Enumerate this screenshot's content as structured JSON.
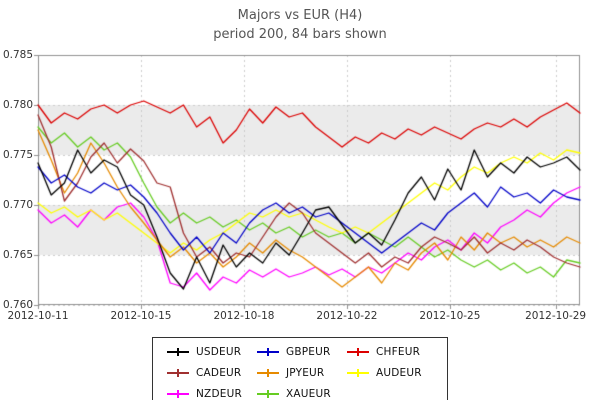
{
  "header": {
    "title": "Majors vs EUR (H4)",
    "subtitle": "period 200, 84 bars shown"
  },
  "chart_data": {
    "type": "line",
    "title": "Majors vs EUR (H4)",
    "subtitle": "period 200, 84 bars shown",
    "ylim": [
      0.76,
      0.785
    ],
    "yticks": [
      0.76,
      0.765,
      0.77,
      0.775,
      0.78,
      0.785
    ],
    "ytick_decimals": 3,
    "xticks": [
      {
        "label": "2012-10-11",
        "pos": 0.0
      },
      {
        "label": "2012-10-15",
        "pos": 0.19
      },
      {
        "label": "2012-10-18",
        "pos": 0.38
      },
      {
        "label": "2012-10-22",
        "pos": 0.57
      },
      {
        "label": "2012-10-25",
        "pos": 0.76
      },
      {
        "label": "2012-10-29",
        "pos": 0.955
      }
    ],
    "grid": true,
    "band_color": "#ebebeb",
    "grid_color": "#cccccc",
    "frame_color": "#909090",
    "legend_position": "bottom",
    "series": [
      {
        "name": "USDEUR",
        "color": "#000000",
        "values": [
          0.7742,
          0.771,
          0.7722,
          0.7755,
          0.7732,
          0.7745,
          0.7738,
          0.771,
          0.77,
          0.7668,
          0.7632,
          0.7616,
          0.7648,
          0.7622,
          0.766,
          0.7638,
          0.7652,
          0.7642,
          0.7662,
          0.765,
          0.7672,
          0.7695,
          0.7698,
          0.768,
          0.7662,
          0.7672,
          0.766,
          0.7685,
          0.7712,
          0.7728,
          0.7705,
          0.7736,
          0.7715,
          0.7755,
          0.7728,
          0.7742,
          0.7732,
          0.7748,
          0.7738,
          0.7742,
          0.7748,
          0.7735
        ]
      },
      {
        "name": "GBPEUR",
        "color": "#0000c8",
        "values": [
          0.7738,
          0.7722,
          0.773,
          0.7718,
          0.7712,
          0.7722,
          0.7715,
          0.772,
          0.7708,
          0.7692,
          0.7672,
          0.7655,
          0.7668,
          0.7652,
          0.7672,
          0.7662,
          0.7682,
          0.7695,
          0.7702,
          0.7692,
          0.7698,
          0.7688,
          0.7692,
          0.7682,
          0.7672,
          0.7662,
          0.7652,
          0.7662,
          0.7672,
          0.7682,
          0.7675,
          0.7692,
          0.7702,
          0.7712,
          0.7698,
          0.7718,
          0.7708,
          0.7712,
          0.7702,
          0.7715,
          0.7708,
          0.7705
        ]
      },
      {
        "name": "CHFEUR",
        "color": "#dc0000",
        "values": [
          0.78,
          0.7782,
          0.7792,
          0.7786,
          0.7796,
          0.78,
          0.7792,
          0.78,
          0.7804,
          0.7798,
          0.7792,
          0.78,
          0.7778,
          0.7788,
          0.7762,
          0.7775,
          0.7796,
          0.7782,
          0.7798,
          0.7788,
          0.7792,
          0.7778,
          0.7768,
          0.7758,
          0.7768,
          0.7762,
          0.7772,
          0.7766,
          0.7776,
          0.777,
          0.7778,
          0.7772,
          0.7766,
          0.7776,
          0.7782,
          0.7778,
          0.7786,
          0.7778,
          0.7788,
          0.7795,
          0.7802,
          0.7792
        ]
      },
      {
        "name": "CADEUR",
        "color": "#a03030",
        "values": [
          0.779,
          0.7758,
          0.7704,
          0.7722,
          0.7748,
          0.7762,
          0.7742,
          0.7756,
          0.7744,
          0.7722,
          0.7718,
          0.7672,
          0.7648,
          0.7658,
          0.7642,
          0.7652,
          0.7648,
          0.7668,
          0.7688,
          0.7702,
          0.7692,
          0.7672,
          0.7662,
          0.7652,
          0.7642,
          0.7652,
          0.7638,
          0.7648,
          0.7642,
          0.7658,
          0.7668,
          0.7662,
          0.7655,
          0.7668,
          0.7652,
          0.7662,
          0.7655,
          0.7665,
          0.7658,
          0.7648,
          0.7642,
          0.7638
        ]
      },
      {
        "name": "JPYEUR",
        "color": "#e68a00",
        "values": [
          0.7775,
          0.7745,
          0.7712,
          0.7732,
          0.7762,
          0.7742,
          0.7718,
          0.7698,
          0.7682,
          0.7665,
          0.7648,
          0.7658,
          0.7642,
          0.7652,
          0.7638,
          0.7648,
          0.7662,
          0.7652,
          0.7665,
          0.7655,
          0.7648,
          0.7638,
          0.7628,
          0.7618,
          0.7628,
          0.7638,
          0.7622,
          0.7642,
          0.7635,
          0.7652,
          0.7662,
          0.7645,
          0.7668,
          0.7655,
          0.7672,
          0.7662,
          0.7668,
          0.7658,
          0.7665,
          0.7658,
          0.7668,
          0.7662
        ]
      },
      {
        "name": "AUDEUR",
        "color": "#ffff00",
        "values": [
          0.7702,
          0.7692,
          0.7698,
          0.7688,
          0.7695,
          0.7685,
          0.7692,
          0.7682,
          0.7672,
          0.7662,
          0.7652,
          0.7662,
          0.7655,
          0.7665,
          0.7672,
          0.7682,
          0.7692,
          0.7688,
          0.7695,
          0.7688,
          0.7692,
          0.7685,
          0.7678,
          0.7672,
          0.7678,
          0.7672,
          0.7682,
          0.7692,
          0.7702,
          0.7712,
          0.7722,
          0.7715,
          0.7728,
          0.7738,
          0.7732,
          0.7742,
          0.7748,
          0.7742,
          0.7752,
          0.7745,
          0.7755,
          0.7752
        ]
      },
      {
        "name": "NZDEUR",
        "color": "#ff00ff",
        "values": [
          0.7695,
          0.7682,
          0.769,
          0.7678,
          0.7695,
          0.7685,
          0.7698,
          0.7702,
          0.7688,
          0.7665,
          0.7622,
          0.7618,
          0.7632,
          0.7615,
          0.7628,
          0.7622,
          0.7635,
          0.7628,
          0.7636,
          0.7628,
          0.7632,
          0.7638,
          0.763,
          0.7636,
          0.7628,
          0.7638,
          0.7632,
          0.7642,
          0.7652,
          0.7645,
          0.7658,
          0.7665,
          0.7655,
          0.7672,
          0.7662,
          0.7678,
          0.7685,
          0.7695,
          0.7688,
          0.7702,
          0.7712,
          0.7718
        ]
      },
      {
        "name": "XAUEUR",
        "color": "#66cc22",
        "values": [
          0.7778,
          0.7762,
          0.7772,
          0.7758,
          0.7768,
          0.7755,
          0.7762,
          0.7748,
          0.7722,
          0.7698,
          0.7682,
          0.7692,
          0.7682,
          0.7688,
          0.7678,
          0.7685,
          0.7675,
          0.7682,
          0.7672,
          0.7678,
          0.7668,
          0.7675,
          0.7668,
          0.7672,
          0.7662,
          0.7672,
          0.7665,
          0.7658,
          0.7668,
          0.7658,
          0.7648,
          0.7655,
          0.7645,
          0.7638,
          0.7645,
          0.7635,
          0.7642,
          0.7632,
          0.7638,
          0.7628,
          0.7645,
          0.7642
        ]
      }
    ],
    "legend_rows": [
      [
        "USDEUR",
        "GBPEUR",
        "CHFEUR"
      ],
      [
        "CADEUR",
        "JPYEUR",
        "AUDEUR"
      ],
      [
        "NZDEUR",
        "XAUEUR"
      ]
    ]
  }
}
